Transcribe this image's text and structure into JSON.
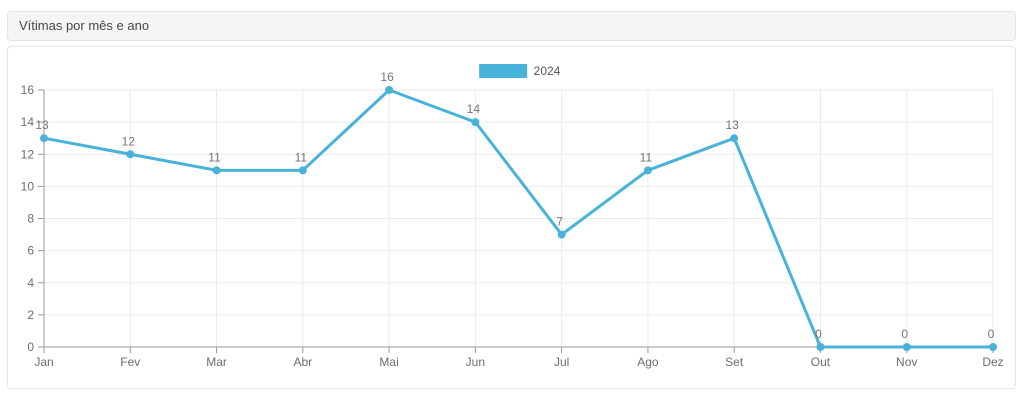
{
  "panel": {
    "title": "Vítimas por mês e ano"
  },
  "legend": {
    "label": "2024"
  },
  "colors": {
    "line": "#49b2d8",
    "point": "#49b2d8",
    "grid": "#ebebeb",
    "axis": "#9a9a9a",
    "tick_text": "#6d6d6d",
    "point_label_text": "#757575",
    "header_bg": "#f5f5f5",
    "panel_border": "#e6e6e6"
  },
  "chart_data": {
    "type": "line",
    "title": "Vítimas por mês e ano",
    "categories": [
      "Jan",
      "Fev",
      "Mar",
      "Abr",
      "Mai",
      "Jun",
      "Jul",
      "Ago",
      "Set",
      "Out",
      "Nov",
      "Dez"
    ],
    "series": [
      {
        "name": "2024",
        "values": [
          13,
          12,
          11,
          11,
          16,
          14,
          7,
          11,
          13,
          0,
          0,
          0
        ]
      }
    ],
    "xlabel": "",
    "ylabel": "",
    "ylim": [
      0,
      16
    ],
    "ytick_step": 2,
    "grid": true,
    "legend_position": "top",
    "point_labels": true
  }
}
